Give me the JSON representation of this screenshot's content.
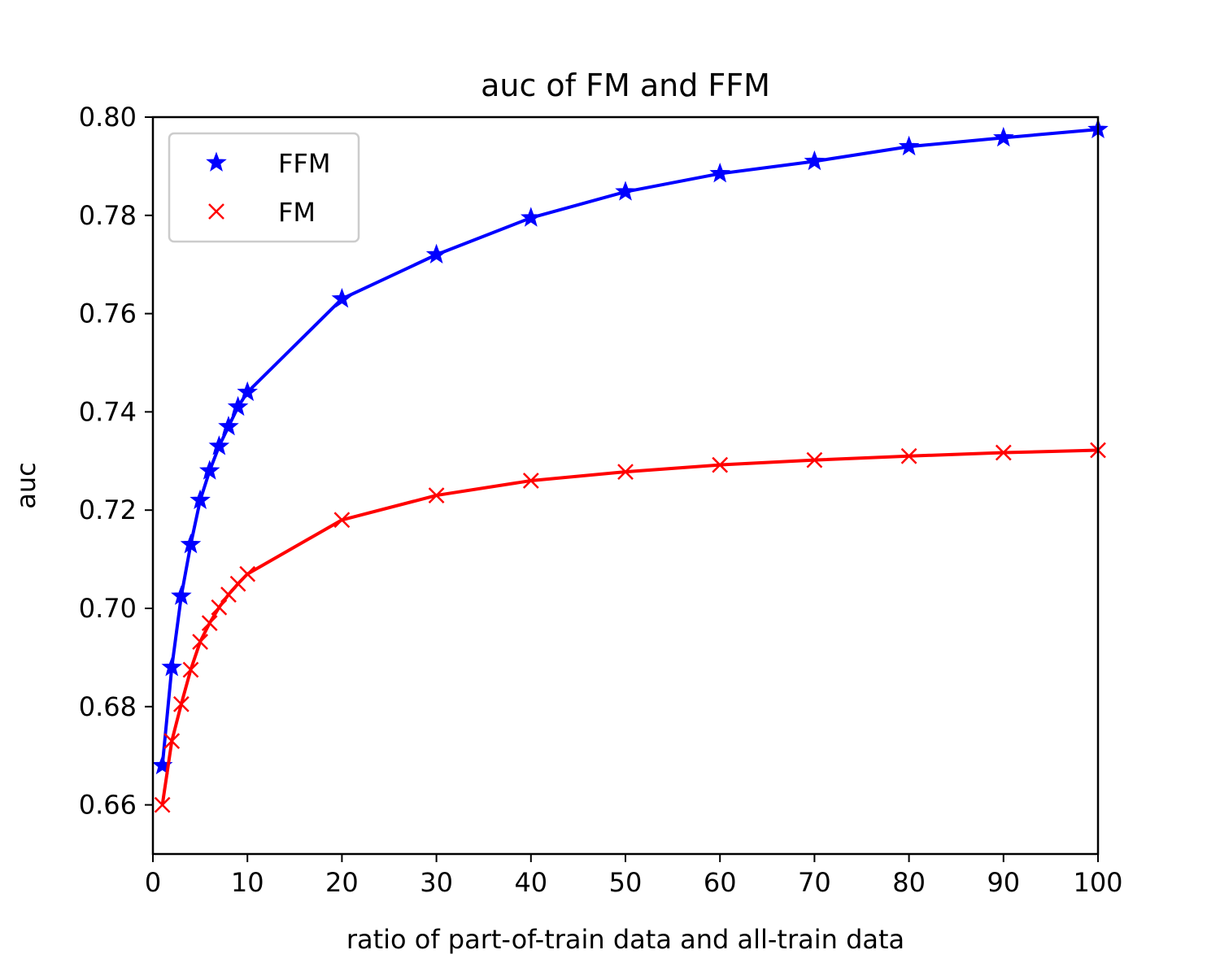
{
  "chart_data": {
    "type": "line",
    "title": "auc of FM and FFM",
    "xlabel": "ratio of part-of-train data and all-train data",
    "ylabel": "auc",
    "xlim": [
      0,
      100
    ],
    "ylim": [
      0.65,
      0.8
    ],
    "xticks": [
      "0",
      "10",
      "20",
      "30",
      "40",
      "50",
      "60",
      "70",
      "80",
      "90",
      "100"
    ],
    "yticks": [
      "0.66",
      "0.68",
      "0.70",
      "0.72",
      "0.74",
      "0.76",
      "0.78",
      "0.80"
    ],
    "grid": false,
    "legend_position": "top-left",
    "series": [
      {
        "name": "FFM",
        "color": "#0000ff",
        "marker": "star",
        "x": [
          1,
          2,
          3,
          4,
          5,
          6,
          7,
          8,
          9,
          10,
          20,
          30,
          40,
          50,
          60,
          70,
          80,
          90,
          100
        ],
        "values": [
          0.668,
          0.688,
          0.7025,
          0.713,
          0.722,
          0.728,
          0.733,
          0.737,
          0.741,
          0.744,
          0.763,
          0.772,
          0.7795,
          0.7848,
          0.7885,
          0.791,
          0.794,
          0.7958,
          0.7975
        ]
      },
      {
        "name": "FM",
        "color": "#ff0000",
        "marker": "x",
        "x": [
          1,
          2,
          3,
          4,
          5,
          6,
          7,
          8,
          9,
          10,
          20,
          30,
          40,
          50,
          60,
          70,
          80,
          90,
          100
        ],
        "values": [
          0.66,
          0.673,
          0.6805,
          0.6875,
          0.6932,
          0.697,
          0.7002,
          0.7028,
          0.705,
          0.707,
          0.718,
          0.723,
          0.726,
          0.7278,
          0.7292,
          0.7302,
          0.731,
          0.7317,
          0.7322
        ]
      }
    ]
  }
}
